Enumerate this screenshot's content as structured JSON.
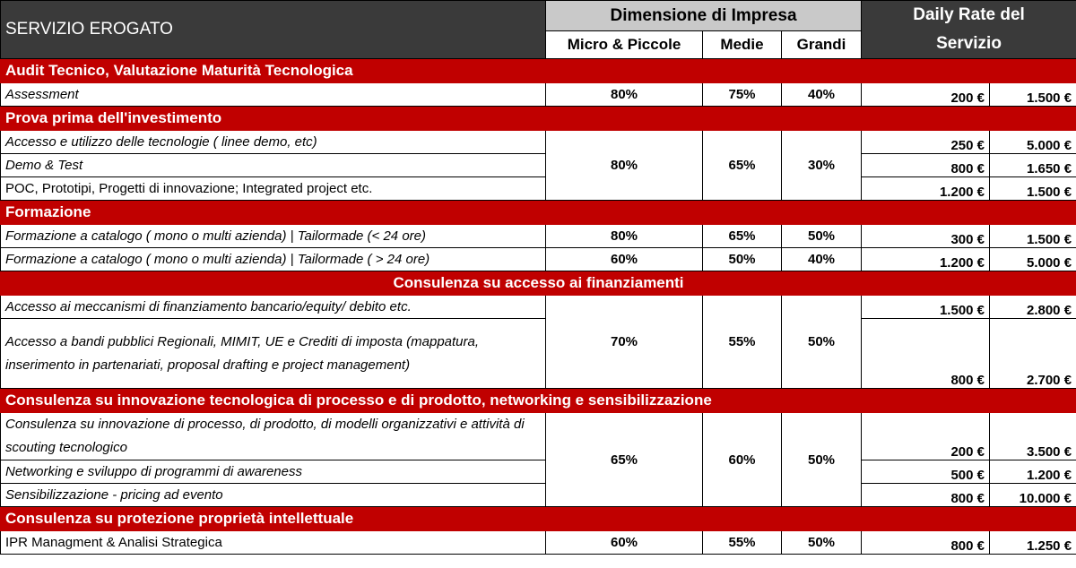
{
  "header": {
    "service_label": "SERVIZIO EROGATO",
    "dimension_label": "Dimensione di Impresa",
    "col_micro": "Micro & Piccole",
    "col_medie": "Medie",
    "col_grandi": "Grandi",
    "rate_label_1": "Daily Rate del",
    "rate_label_2": "Servizio"
  },
  "sections": [
    {
      "title": "Audit Tecnico, Valutazione Maturità Tecnologica",
      "rows": [
        {
          "service": "Assessment",
          "micro": "80%",
          "medie": "75%",
          "grandi": "40%",
          "rate_min": "200 €",
          "rate_max": "1.500 €"
        }
      ]
    },
    {
      "title": "Prova prima dell'investimento",
      "micro": "80%",
      "medie": "65%",
      "grandi": "30%",
      "rows": [
        {
          "service": "Accesso e utilizzo delle tecnologie ( linee demo, etc)",
          "rate_min": "250 €",
          "rate_max": "5.000 €"
        },
        {
          "service": "Demo & Test",
          "rate_min": "800 €",
          "rate_max": "1.650 €"
        },
        {
          "service": "POC, Prototipi, Progetti di innovazione; Integrated project etc.",
          "rate_min": "1.200 €",
          "rate_max": "1.500 €"
        }
      ]
    },
    {
      "title": "Formazione",
      "rows": [
        {
          "service": "Formazione a catalogo ( mono o multi azienda) | Tailormade (<  24 ore)",
          "micro": "80%",
          "medie": "65%",
          "grandi": "50%",
          "rate_min": "300 €",
          "rate_max": "1.500 €"
        },
        {
          "service": "Formazione a catalogo ( mono o multi azienda) | Tailormade ( > 24 ore)",
          "micro": "60%",
          "medie": "50%",
          "grandi": "40%",
          "rate_min": "1.200 €",
          "rate_max": "5.000 €"
        }
      ]
    },
    {
      "title": "Consulenza su accesso ai finanziamenti",
      "micro": "70%",
      "medie": "55%",
      "grandi": "50%",
      "rows": [
        {
          "service": "Accesso ai meccanismi di finanziamento bancario/equity/ debito etc.",
          "rate_min": "1.500 €",
          "rate_max": "2.800 €"
        },
        {
          "service": "Accesso a bandi pubblici Regionali, MIMIT, UE e Crediti di imposta (mappatura, inserimento in partenariati, proposal drafting e project management)",
          "rate_min": "800 €",
          "rate_max": "2.700 €"
        }
      ]
    },
    {
      "title": "Consulenza su innovazione tecnologica di processo e di prodotto, networking e sensibilizzazione",
      "micro": "65%",
      "medie": "60%",
      "grandi": "50%",
      "rows": [
        {
          "service": "Consulenza su innovazione di processo, di prodotto, di modelli organizzativi e attività di scouting tecnologico",
          "rate_min": "200 €",
          "rate_max": "3.500 €"
        },
        {
          "service": "Networking e sviluppo di programmi di awareness",
          "rate_min": "500 €",
          "rate_max": "1.200 €"
        },
        {
          "service": "Sensibilizzazione - pricing ad evento",
          "rate_min": "800 €",
          "rate_max": "10.000 €"
        }
      ]
    },
    {
      "title": "Consulenza su protezione proprietà intellettuale",
      "rows": [
        {
          "service": "IPR Managment & Analisi Strategica",
          "micro": "60%",
          "medie": "55%",
          "grandi": "50%",
          "rate_min": "800 €",
          "rate_max": "1.250 €"
        }
      ]
    }
  ]
}
